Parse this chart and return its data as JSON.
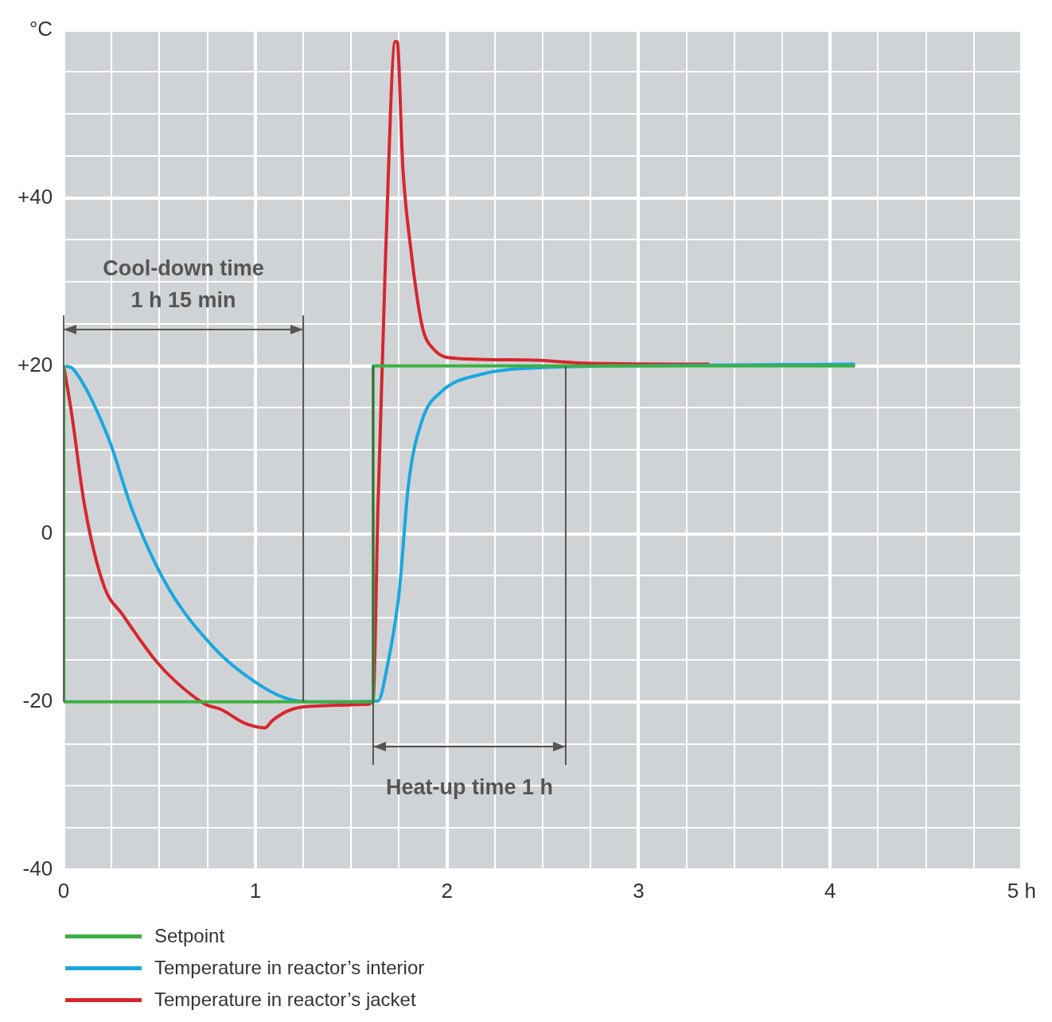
{
  "chart_data": {
    "type": "line",
    "series": [
      {
        "name": "Setpoint",
        "color": "#3cb043",
        "x": [
          0,
          0,
          1.615,
          1.615,
          4.13
        ],
        "values": [
          20,
          -20,
          -20,
          20,
          20
        ]
      },
      {
        "name": "Temperature in reactor’s interior",
        "color": "#1aa7e0",
        "x": [
          0.01,
          0.05,
          0.23,
          0.36,
          0.54,
          0.79,
          0.99,
          1.15,
          1.28,
          1.64,
          1.69,
          1.75,
          1.8,
          1.87,
          1.97,
          2.18,
          2.5,
          2.91,
          4.13
        ],
        "values": [
          20,
          19.6,
          11.6,
          2.7,
          -6.2,
          -13.7,
          -17.5,
          -19.5,
          -20,
          -19.9,
          -15.6,
          -7.1,
          6,
          13.5,
          16.9,
          19,
          19.8,
          20,
          20.2
        ]
      },
      {
        "name": "Temperature in reactor’s jacket",
        "color": "#d7262e",
        "x": [
          0,
          0.04,
          0.11,
          0.21,
          0.31,
          0.48,
          0.58,
          0.74,
          0.82,
          0.95,
          1.05,
          1.09,
          1.19,
          1.32,
          1.58,
          1.615,
          1.64,
          1.68,
          1.73,
          1.74,
          1.77,
          1.81,
          1.87,
          1.93,
          2.05,
          2.42,
          2.75,
          3.37
        ],
        "values": [
          20,
          14.5,
          3.2,
          -6.2,
          -9.7,
          -15.1,
          -17.5,
          -20.3,
          -20.9,
          -22.6,
          -23.1,
          -22.2,
          -20.9,
          -20.5,
          -20.3,
          -19.8,
          3.2,
          33.2,
          58.6,
          58.6,
          43.6,
          34.2,
          24.8,
          22,
          20.9,
          20.7,
          20.3,
          20.2
        ]
      }
    ],
    "xlim": [
      0,
      5
    ],
    "xticks": [
      0,
      {
        "value": 0.25,
        "label": null
      },
      {
        "value": 0.5,
        "label": null
      },
      {
        "value": 0.75,
        "label": null
      },
      1,
      {
        "value": 1.25,
        "label": null
      },
      {
        "value": 1.5,
        "label": null
      },
      {
        "value": 1.75,
        "label": null
      },
      2,
      {
        "value": 2.25,
        "label": null
      },
      {
        "value": 2.5,
        "label": null
      },
      {
        "value": 2.75,
        "label": null
      },
      3,
      {
        "value": 3.25,
        "label": null
      },
      {
        "value": 3.5,
        "label": null
      },
      {
        "value": 3.75,
        "label": null
      },
      4,
      {
        "value": 4.25,
        "label": null
      },
      {
        "value": 4.5,
        "label": null
      },
      {
        "value": 4.75,
        "label": null
      },
      {
        "value": 5,
        "label": "5 h"
      }
    ],
    "ylim": [
      -40,
      60
    ],
    "yticks": [
      -40,
      {
        "value": -35,
        "label": null
      },
      {
        "value": -30,
        "label": null
      },
      {
        "value": -25,
        "label": null
      },
      -20,
      {
        "value": -15,
        "label": null
      },
      {
        "value": -10,
        "label": null
      },
      {
        "value": -5,
        "label": null
      },
      0,
      {
        "value": 5,
        "label": null
      },
      {
        "value": 10,
        "label": null
      },
      {
        "value": 15,
        "label": null
      },
      {
        "value": 20,
        "label": "+20"
      },
      {
        "value": 25,
        "label": null
      },
      {
        "value": 30,
        "label": null
      },
      {
        "value": 35,
        "label": null
      },
      {
        "value": 40,
        "label": "+40"
      },
      {
        "value": 45,
        "label": null
      },
      {
        "value": 50,
        "label": null
      },
      {
        "value": 55,
        "label": null
      },
      {
        "value": 60,
        "label": "°C"
      }
    ],
    "ref_lines": [
      {
        "axis": "x",
        "value": 0,
        "color": "#555555"
      },
      {
        "axis": "x",
        "value": 1.25,
        "color": "#555555"
      },
      {
        "axis": "x",
        "value": 1.615,
        "color": "#555555"
      },
      {
        "axis": "x",
        "value": 2.62,
        "color": "#555555"
      }
    ],
    "annotations": [
      "Cool-down time\n1 h 15 min",
      "Heat-up time 1 h"
    ],
    "grid": true,
    "legend": "bottom"
  }
}
